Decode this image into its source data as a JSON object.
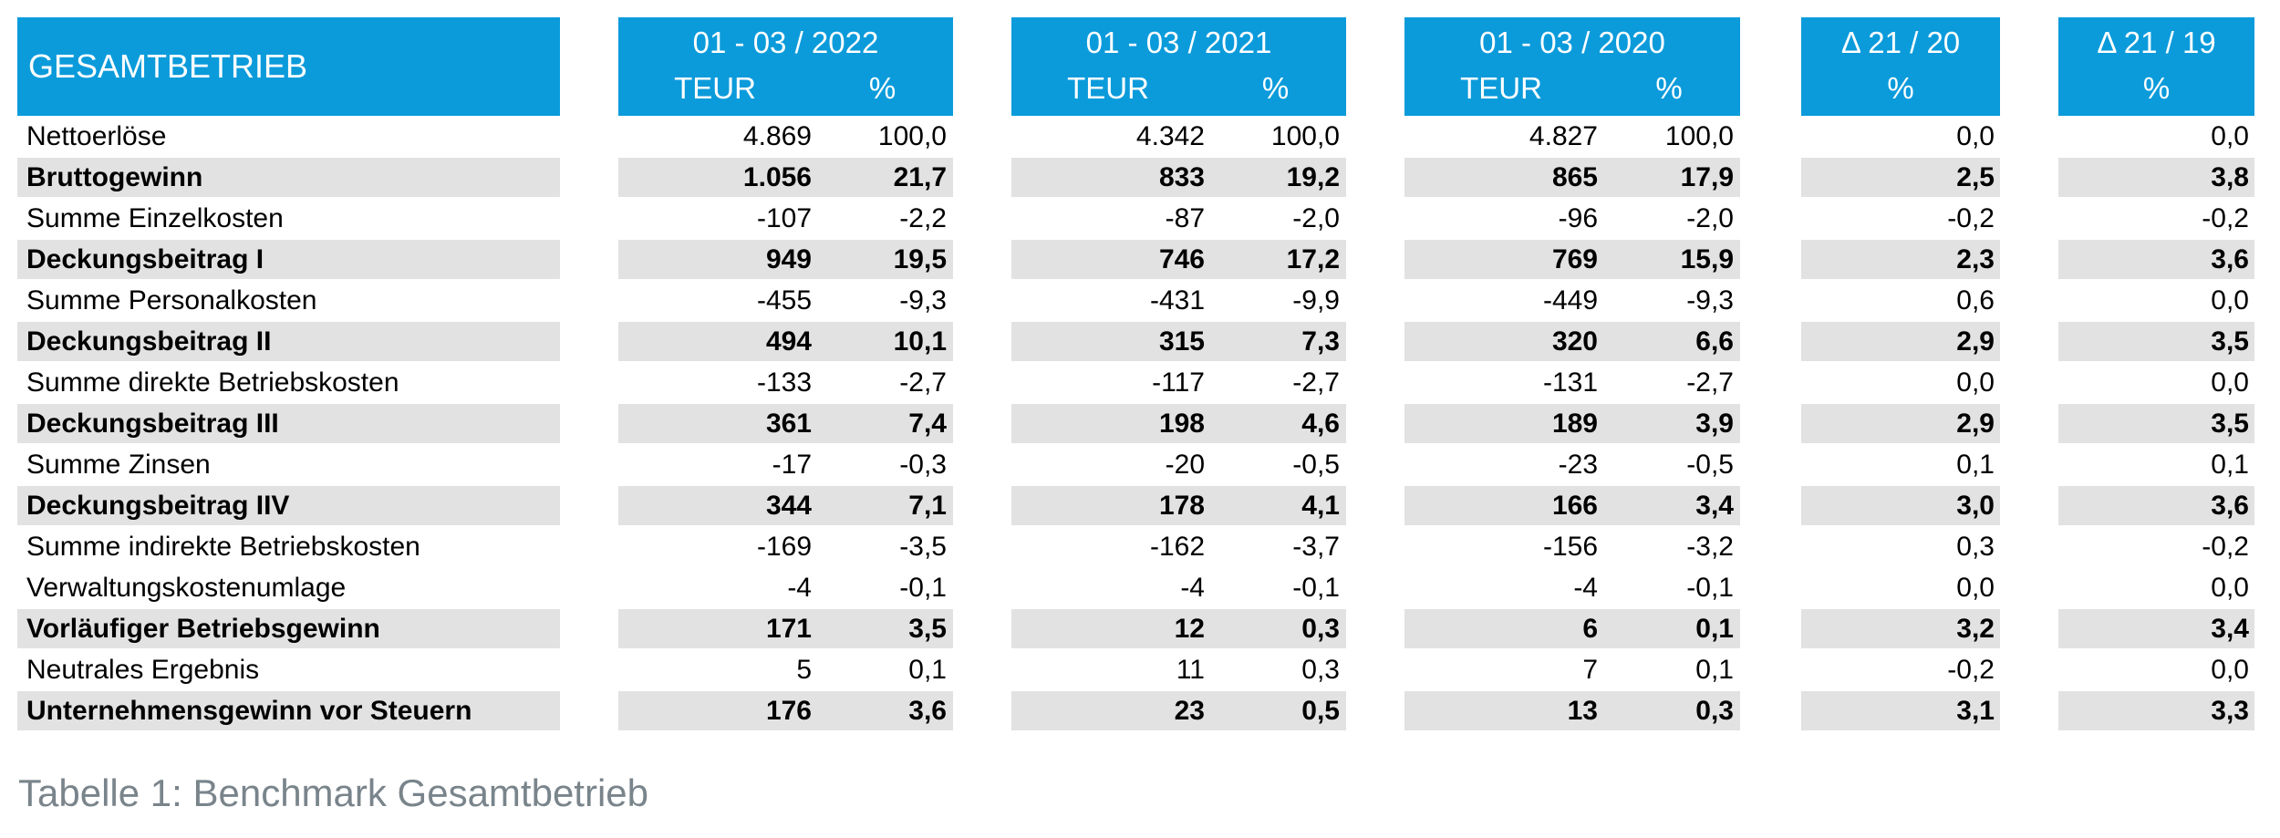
{
  "colors": {
    "header_blue": "#0b9bdb",
    "row_highlight": "#e2e2e2",
    "caption_gray": "#79848b",
    "text": "#000000"
  },
  "table": {
    "title": "GESAMTBETRIEB",
    "period_columns": [
      {
        "label": "01 - 03 / 2022",
        "sub_teur": "TEUR",
        "sub_pct": "%"
      },
      {
        "label": "01 - 03 / 2021",
        "sub_teur": "TEUR",
        "sub_pct": "%"
      },
      {
        "label": "01 - 03 / 2020",
        "sub_teur": "TEUR",
        "sub_pct": "%"
      }
    ],
    "delta_columns": [
      {
        "label": "Δ 21 / 20",
        "sub_pct": "%"
      },
      {
        "label": "Δ 21 / 19",
        "sub_pct": "%"
      }
    ],
    "rows": [
      {
        "label": "Nettoerlöse",
        "bold": false,
        "values": [
          "4.869",
          "100,0",
          "4.342",
          "100,0",
          "4.827",
          "100,0",
          "0,0",
          "0,0"
        ]
      },
      {
        "label": "Bruttogewinn",
        "bold": true,
        "values": [
          "1.056",
          "21,7",
          "833",
          "19,2",
          "865",
          "17,9",
          "2,5",
          "3,8"
        ]
      },
      {
        "label": "Summe Einzelkosten",
        "bold": false,
        "values": [
          "-107",
          "-2,2",
          "-87",
          "-2,0",
          "-96",
          "-2,0",
          "-0,2",
          "-0,2"
        ]
      },
      {
        "label": "Deckungsbeitrag I",
        "bold": true,
        "values": [
          "949",
          "19,5",
          "746",
          "17,2",
          "769",
          "15,9",
          "2,3",
          "3,6"
        ]
      },
      {
        "label": "Summe Personalkosten",
        "bold": false,
        "values": [
          "-455",
          "-9,3",
          "-431",
          "-9,9",
          "-449",
          "-9,3",
          "0,6",
          "0,0"
        ]
      },
      {
        "label": "Deckungsbeitrag II",
        "bold": true,
        "values": [
          "494",
          "10,1",
          "315",
          "7,3",
          "320",
          "6,6",
          "2,9",
          "3,5"
        ]
      },
      {
        "label": "Summe direkte Betriebskosten",
        "bold": false,
        "values": [
          "-133",
          "-2,7",
          "-117",
          "-2,7",
          "-131",
          "-2,7",
          "0,0",
          "0,0"
        ]
      },
      {
        "label": "Deckungsbeitrag III",
        "bold": true,
        "values": [
          "361",
          "7,4",
          "198",
          "4,6",
          "189",
          "3,9",
          "2,9",
          "3,5"
        ]
      },
      {
        "label": "Summe Zinsen",
        "bold": false,
        "values": [
          "-17",
          "-0,3",
          "-20",
          "-0,5",
          "-23",
          "-0,5",
          "0,1",
          "0,1"
        ]
      },
      {
        "label": "Deckungsbeitrag IIV",
        "bold": true,
        "values": [
          "344",
          "7,1",
          "178",
          "4,1",
          "166",
          "3,4",
          "3,0",
          "3,6"
        ]
      },
      {
        "label": "Summe indirekte Betriebskosten",
        "bold": false,
        "values": [
          "-169",
          "-3,5",
          "-162",
          "-3,7",
          "-156",
          "-3,2",
          "0,3",
          "-0,2"
        ]
      },
      {
        "label": "Verwaltungskostenumlage",
        "bold": false,
        "values": [
          "-4",
          "-0,1",
          "-4",
          "-0,1",
          "-4",
          "-0,1",
          "0,0",
          "0,0"
        ]
      },
      {
        "label": "Vorläufiger Betriebsgewinn",
        "bold": true,
        "values": [
          "171",
          "3,5",
          "12",
          "0,3",
          "6",
          "0,1",
          "3,2",
          "3,4"
        ]
      },
      {
        "label": "Neutrales Ergebnis",
        "bold": false,
        "values": [
          "5",
          "0,1",
          "11",
          "0,3",
          "7",
          "0,1",
          "-0,2",
          "0,0"
        ]
      },
      {
        "label": "Unternehmensgewinn vor Steuern",
        "bold": true,
        "values": [
          "176",
          "3,6",
          "23",
          "0,5",
          "13",
          "0,3",
          "3,1",
          "3,3"
        ]
      }
    ]
  },
  "caption": "Tabelle 1: Benchmark Gesamtbetrieb"
}
